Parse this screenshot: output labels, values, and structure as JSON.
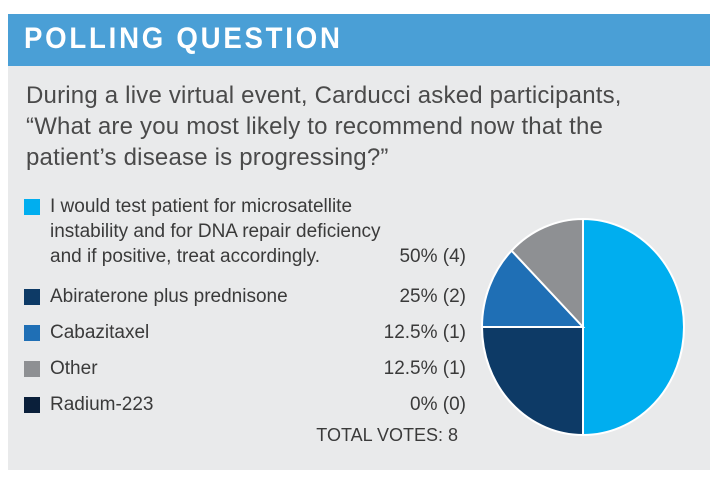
{
  "header": {
    "title": "POLLING QUESTION"
  },
  "question": {
    "line1": "During a live virtual event, Carducci asked participants,",
    "line2": "“What are you most likely to recommend now that the",
    "line3": "patient’s disease is progressing?”"
  },
  "options": [
    {
      "line1": "I would test patient for microsatellite",
      "line2": "instability and for DNA repair deficiency",
      "line3": "and if positive, treat accordingly.",
      "value_text": "50% (4)",
      "color": "#00aeef"
    },
    {
      "line1": "Abiraterone plus prednisone",
      "value_text": "25% (2)",
      "color": "#0d3a66"
    },
    {
      "line1": "Cabazitaxel",
      "value_text": "12.5% (1)",
      "color": "#1f6fb5"
    },
    {
      "line1": "Other",
      "value_text": "12.5% (1)",
      "color": "#8e9093"
    },
    {
      "line1": "Radium-223",
      "value_text": "0% (0)",
      "color": "#0a1f3a"
    }
  ],
  "total": "TOTAL VOTES: 8",
  "chart_data": {
    "type": "pie",
    "categories": [
      "I would test patient for microsatellite instability and for DNA repair deficiency and if positive, treat accordingly.",
      "Abiraterone plus prednisone",
      "Cabazitaxel",
      "Other",
      "Radium-223"
    ],
    "values": [
      50,
      25,
      12.5,
      12.5,
      0
    ],
    "counts": [
      4,
      2,
      1,
      1,
      0
    ],
    "colors": [
      "#00aeef",
      "#0d3a66",
      "#1f6fb5",
      "#8e9093",
      "#0a1f3a"
    ],
    "total_votes": 8
  }
}
